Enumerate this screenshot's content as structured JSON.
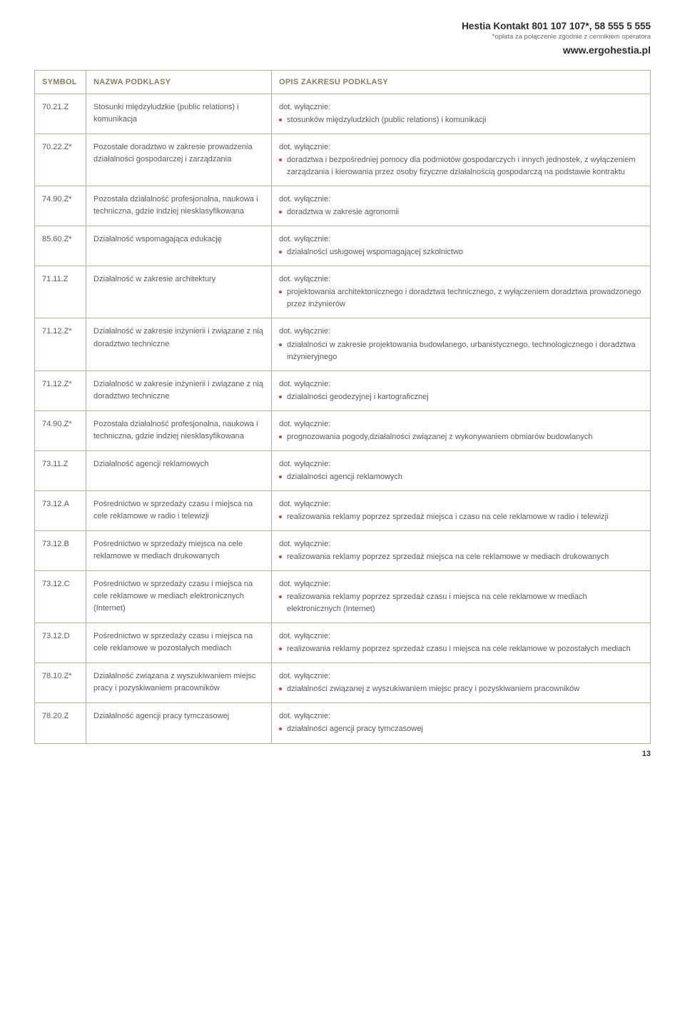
{
  "header": {
    "contact": "Hestia Kontakt 801 107 107*, 58 555 5 555",
    "note": "*opłata za połączenie zgodnie z cennikiem operatora",
    "url": "www.ergohestia.pl"
  },
  "table": {
    "columns": {
      "symbol": "SYMBOL",
      "nazwa": "NAZWA PODKLASY",
      "opis": "OPIS ZAKRESU PODKLASY"
    },
    "prefix": "dot. wyłącznie:",
    "rows": [
      {
        "symbol": "70.21.Z",
        "nazwa": "Stosunki międzyludzkie (public relations) i komunikacja",
        "bullets": [
          "stosunków międzyludzkich (public relations) i komunikacji"
        ]
      },
      {
        "symbol": "70.22.Z*",
        "nazwa": "Pozostałe doradztwo w zakresie prowadzenia działalności gospodarczej i zarządzania",
        "bullets": [
          "doradztwa i bezpośredniej pomocy dla podmiotów gospodarczych i innych jednostek, z wyłączeniem zarządzania i kierowania przez osoby fizyczne działalnością gospodarczą na podstawie kontraktu"
        ]
      },
      {
        "symbol": "74.90.Z*",
        "nazwa": "Pozostała działalność profesjonalna, naukowa i techniczna, gdzie indziej niesklasyfikowana",
        "bullets": [
          "doradztwa w zakresie agronomii"
        ]
      },
      {
        "symbol": "85.60.Z*",
        "nazwa": "Działalność wspomagająca edukację",
        "bullets": [
          "działalności usługowej wspomagającej szkolnictwo"
        ]
      },
      {
        "symbol": "71.11.Z",
        "nazwa": "Działalność w zakresie architektury",
        "bullets": [
          "projektowania architektonicznego i doradztwa technicznego, z wyłączeniem doradztwa prowadzonego przez inżynierów"
        ]
      },
      {
        "symbol": "71.12.Z*",
        "nazwa": "Działalność w zakresie inżynierii i związane z nią doradztwo techniczne",
        "bullets": [
          "działalności w zakresie projektowania budowlanego, urbanistycznego, technologicznego i doradztwa inżynieryjnego"
        ]
      },
      {
        "symbol": "71.12.Z*",
        "nazwa": "Działalność w zakresie inżynierii i związane z nią doradztwo techniczne",
        "bullets": [
          "działalności geodezyjnej i kartograficznej"
        ]
      },
      {
        "symbol": "74.90.Z*",
        "nazwa": "Pozostała działalność profesjonalna, naukowa i techniczna, gdzie indziej niesklasyfikowana",
        "bullets": [
          "prognozowania pogody,działalności związanej z wykonywaniem obmiarów budowlanych"
        ]
      },
      {
        "symbol": "73.11.Z",
        "nazwa": "Działalność agencji reklamowych",
        "bullets": [
          "działalności agencji reklamowych"
        ]
      },
      {
        "symbol": "73.12.A",
        "nazwa": "Pośrednictwo w sprzedaży czasu i miejsca na cele reklamowe w radio i telewizji",
        "bullets": [
          "realizowania reklamy poprzez sprzedaż miejsca i czasu na cele reklamowe w  radio i telewizji"
        ]
      },
      {
        "symbol": "73.12.B",
        "nazwa": "Pośrednictwo w sprzedaży miejsca na cele reklamowe w mediach drukowanych",
        "bullets": [
          "realizowania reklamy poprzez sprzedaż miejsca na cele reklamowe w mediach drukowanych"
        ]
      },
      {
        "symbol": "73.12.C",
        "nazwa": "Pośrednictwo w sprzedaży czasu  i miejsca na cele reklamowe w mediach elektronicznych (Internet)",
        "bullets": [
          "realizowania reklamy poprzez sprzedaż czasu i miejsca na cele reklamowe w mediach elektronicznych (Internet)"
        ]
      },
      {
        "symbol": "73.12.D",
        "nazwa": "Pośrednictwo w sprzedaży czasu i miejsca na cele reklamowe w pozostałych mediach",
        "bullets": [
          "realizowania reklamy poprzez sprzedaż czasu i miejsca na cele reklamowe w pozostałych mediach"
        ]
      },
      {
        "symbol": "78.10.Z*",
        "nazwa": "Działalność związana z wyszukiwaniem miejsc pracy i pozyskiwaniem pracowników",
        "bullets": [
          "działalności związanej z wyszukiwaniem miejsc pracy i pozyskiwaniem pracowników"
        ]
      },
      {
        "symbol": "78.20.Z",
        "nazwa": "Działalność agencji pracy tymczasowej",
        "bullets": [
          "działalności agencji pracy tymczasowej"
        ]
      }
    ]
  },
  "page_number": "13",
  "colors": {
    "border": "#b8b197",
    "header_text": "#87805f",
    "bullet": "#b84b4b",
    "body_text": "#5a5a5a"
  }
}
